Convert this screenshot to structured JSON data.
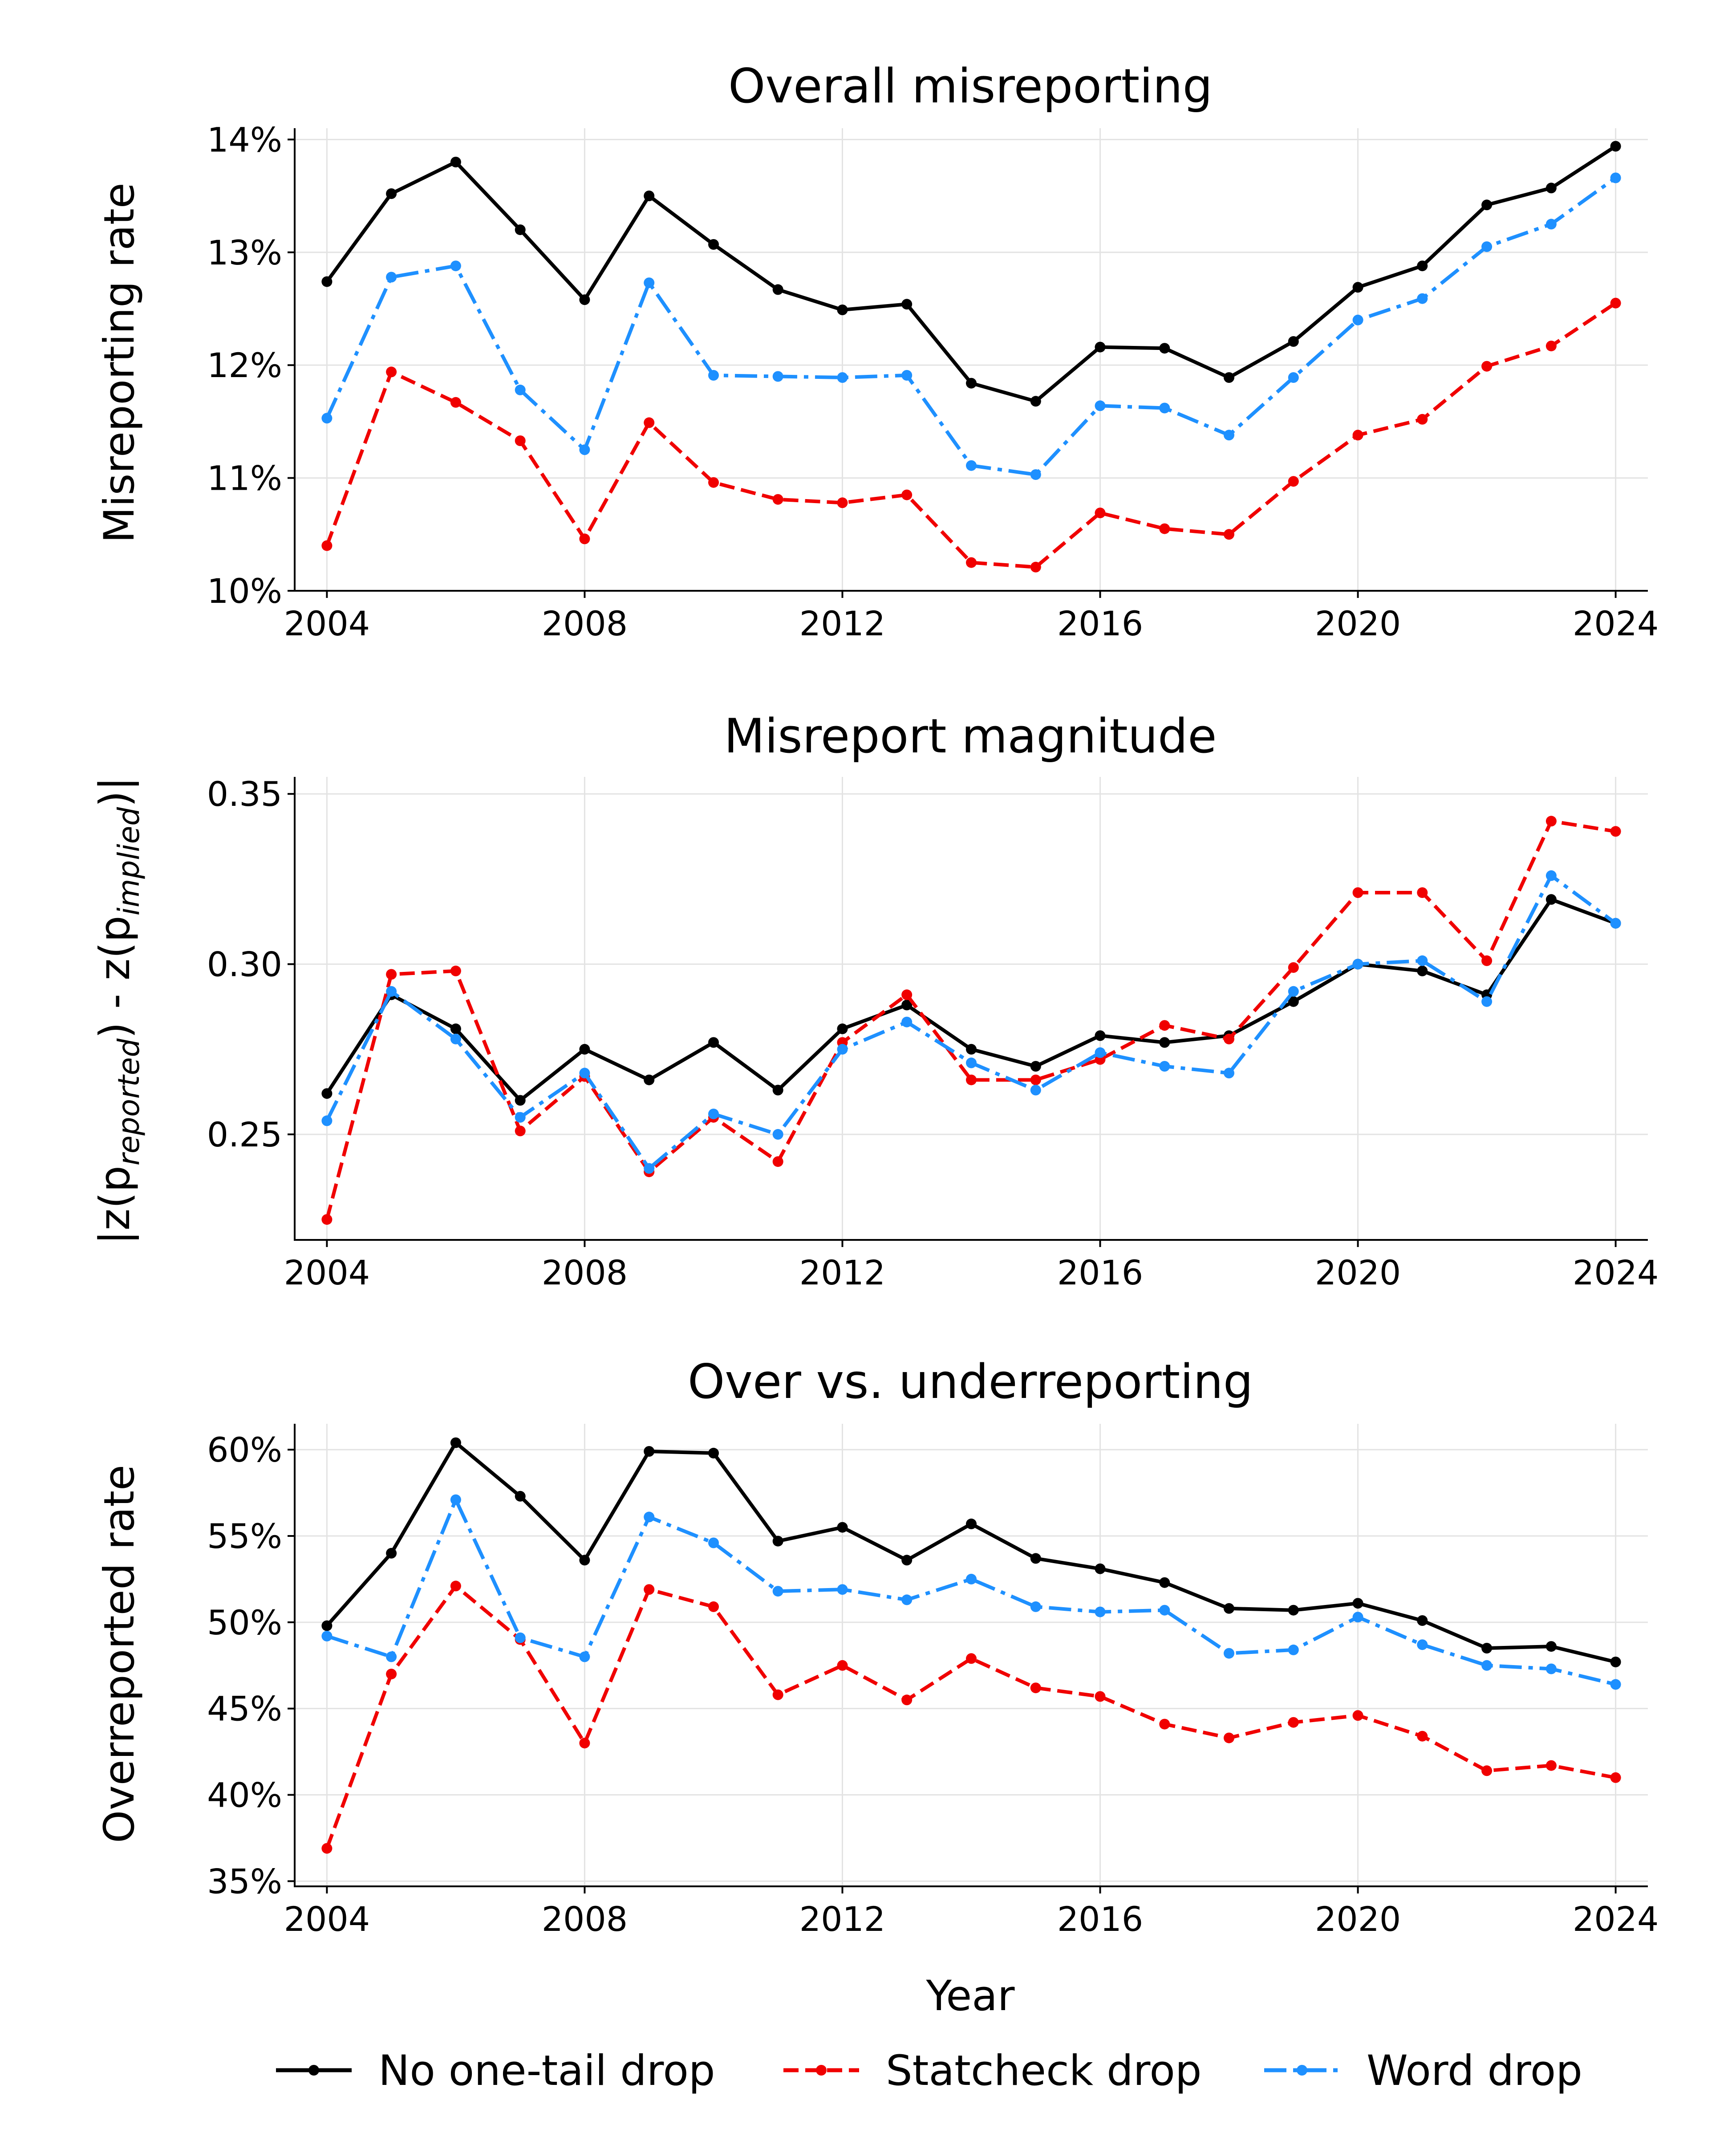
{
  "chart_data": [
    {
      "type": "line",
      "title": "Overall misreporting",
      "ylabel": "Misreporting rate",
      "xlabel": "",
      "x": [
        2004,
        2005,
        2006,
        2007,
        2008,
        2009,
        2010,
        2011,
        2012,
        2013,
        2014,
        2015,
        2016,
        2017,
        2018,
        2019,
        2020,
        2021,
        2022,
        2023,
        2024
      ],
      "xticks": [
        2004,
        2008,
        2012,
        2016,
        2020,
        2024
      ],
      "xtick_labels": [
        "2004",
        "2008",
        "2012",
        "2016",
        "2020",
        "2024"
      ],
      "xlim": [
        2003.5,
        2024.5
      ],
      "ylim": [
        10.0,
        14.1
      ],
      "yticks": [
        10,
        11,
        12,
        13,
        14
      ],
      "ytick_labels": [
        "10%",
        "11%",
        "12%",
        "13%",
        "14%"
      ],
      "grid": true,
      "series": [
        {
          "name": "No one-tail drop",
          "color": "#000000",
          "dash": "solid",
          "values": [
            12.74,
            13.52,
            13.8,
            13.2,
            12.58,
            13.5,
            13.07,
            12.67,
            12.49,
            12.54,
            11.84,
            11.68,
            12.16,
            12.15,
            11.89,
            12.21,
            12.69,
            12.88,
            13.42,
            13.57,
            13.94
          ]
        },
        {
          "name": "Statcheck drop",
          "color": "#f00000",
          "dash": "dashed",
          "values": [
            10.4,
            11.94,
            11.67,
            11.33,
            10.46,
            11.49,
            10.96,
            10.81,
            10.78,
            10.85,
            10.25,
            10.21,
            10.69,
            10.55,
            10.5,
            10.97,
            11.38,
            11.52,
            11.99,
            12.17,
            12.55
          ]
        },
        {
          "name": "Word drop",
          "color": "#1e90ff",
          "dash": "dashdot",
          "values": [
            11.53,
            12.78,
            12.88,
            11.78,
            11.25,
            12.73,
            11.91,
            11.9,
            11.89,
            11.91,
            11.11,
            11.03,
            11.64,
            11.62,
            11.38,
            11.89,
            12.4,
            12.59,
            13.05,
            13.25,
            13.66
          ]
        }
      ]
    },
    {
      "type": "line",
      "title": "Misreport magnitude",
      "ylabel_main_1": "|z(p",
      "ylabel_sub_1": "reported",
      "ylabel_main_2": ") - z(p",
      "ylabel_sub_2": "implied",
      "ylabel_main_3": ")|",
      "xlabel": "",
      "x": [
        2004,
        2005,
        2006,
        2007,
        2008,
        2009,
        2010,
        2011,
        2012,
        2013,
        2014,
        2015,
        2016,
        2017,
        2018,
        2019,
        2020,
        2021,
        2022,
        2023,
        2024
      ],
      "xticks": [
        2004,
        2008,
        2012,
        2016,
        2020,
        2024
      ],
      "xtick_labels": [
        "2004",
        "2008",
        "2012",
        "2016",
        "2020",
        "2024"
      ],
      "xlim": [
        2003.5,
        2024.5
      ],
      "ylim": [
        0.219,
        0.355
      ],
      "yticks": [
        0.25,
        0.3,
        0.35
      ],
      "ytick_labels": [
        "0.25",
        "0.30",
        "0.35"
      ],
      "grid": true,
      "series": [
        {
          "name": "No one-tail drop",
          "color": "#000000",
          "dash": "solid",
          "values": [
            0.262,
            0.291,
            0.281,
            0.26,
            0.275,
            0.266,
            0.277,
            0.263,
            0.281,
            0.288,
            0.275,
            0.27,
            0.279,
            0.277,
            0.279,
            0.289,
            0.3,
            0.298,
            0.291,
            0.319,
            0.312
          ]
        },
        {
          "name": "Statcheck drop",
          "color": "#f00000",
          "dash": "dashed",
          "values": [
            0.225,
            0.297,
            0.298,
            0.251,
            0.267,
            0.239,
            0.255,
            0.242,
            0.277,
            0.291,
            0.266,
            0.266,
            0.272,
            0.282,
            0.278,
            0.299,
            0.321,
            0.321,
            0.301,
            0.342,
            0.339
          ]
        },
        {
          "name": "Word drop",
          "color": "#1e90ff",
          "dash": "dashdot",
          "values": [
            0.254,
            0.292,
            0.278,
            0.255,
            0.268,
            0.24,
            0.256,
            0.25,
            0.275,
            0.283,
            0.271,
            0.263,
            0.274,
            0.27,
            0.268,
            0.292,
            0.3,
            0.301,
            0.289,
            0.326,
            0.312
          ]
        }
      ]
    },
    {
      "type": "line",
      "title": "Over vs. underreporting",
      "ylabel": "Overreported rate",
      "xlabel": "Year",
      "x": [
        2004,
        2005,
        2006,
        2007,
        2008,
        2009,
        2010,
        2011,
        2012,
        2013,
        2014,
        2015,
        2016,
        2017,
        2018,
        2019,
        2020,
        2021,
        2022,
        2023,
        2024
      ],
      "xticks": [
        2004,
        2008,
        2012,
        2016,
        2020,
        2024
      ],
      "xtick_labels": [
        "2004",
        "2008",
        "2012",
        "2016",
        "2020",
        "2024"
      ],
      "xlim": [
        2003.5,
        2024.5
      ],
      "ylim": [
        34.7,
        61.5
      ],
      "yticks": [
        35,
        40,
        45,
        50,
        55,
        60
      ],
      "ytick_labels": [
        "35%",
        "40%",
        "45%",
        "50%",
        "55%",
        "60%"
      ],
      "grid": true,
      "series": [
        {
          "name": "No one-tail drop",
          "color": "#000000",
          "dash": "solid",
          "values": [
            49.8,
            54.0,
            60.4,
            57.3,
            53.6,
            59.9,
            59.8,
            54.7,
            55.5,
            53.6,
            55.7,
            53.7,
            53.1,
            52.3,
            50.8,
            50.7,
            51.1,
            50.1,
            48.5,
            48.6,
            47.7
          ]
        },
        {
          "name": "Statcheck drop",
          "color": "#f00000",
          "dash": "dashed",
          "values": [
            36.9,
            47.0,
            52.1,
            49.0,
            43.0,
            51.9,
            50.9,
            45.8,
            47.5,
            45.5,
            47.9,
            46.2,
            45.7,
            44.1,
            43.3,
            44.2,
            44.6,
            43.4,
            41.4,
            41.7,
            41.0
          ]
        },
        {
          "name": "Word drop",
          "color": "#1e90ff",
          "dash": "dashdot",
          "values": [
            49.2,
            48.0,
            57.1,
            49.1,
            48.0,
            56.1,
            54.6,
            51.8,
            51.9,
            51.3,
            52.5,
            50.9,
            50.6,
            50.7,
            48.2,
            48.4,
            50.3,
            48.7,
            47.5,
            47.3,
            46.4
          ]
        }
      ]
    }
  ],
  "legend": {
    "placement": "bottom-center",
    "entries": [
      {
        "label": "No one-tail drop",
        "color": "#000000",
        "dash": "solid"
      },
      {
        "label": "Statcheck drop",
        "color": "#f00000",
        "dash": "dashed"
      },
      {
        "label": "Word drop",
        "color": "#1e90ff",
        "dash": "dashdot"
      }
    ]
  }
}
